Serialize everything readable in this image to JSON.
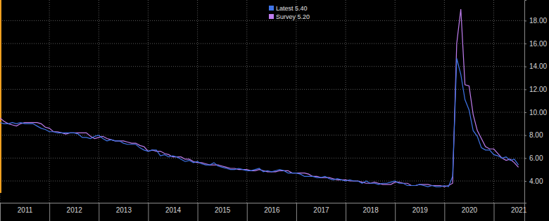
{
  "chart_data": {
    "type": "line",
    "x": [
      2011,
      2011.083,
      2011.167,
      2011.25,
      2011.333,
      2011.417,
      2011.5,
      2011.583,
      2011.667,
      2011.75,
      2011.833,
      2011.917,
      2012,
      2012.083,
      2012.167,
      2012.25,
      2012.333,
      2012.417,
      2012.5,
      2012.583,
      2012.667,
      2012.75,
      2012.833,
      2012.917,
      2013,
      2013.083,
      2013.167,
      2013.25,
      2013.333,
      2013.417,
      2013.5,
      2013.583,
      2013.667,
      2013.75,
      2013.833,
      2013.917,
      2014,
      2014.083,
      2014.167,
      2014.25,
      2014.333,
      2014.417,
      2014.5,
      2014.583,
      2014.667,
      2014.75,
      2014.833,
      2014.917,
      2015,
      2015.083,
      2015.167,
      2015.25,
      2015.333,
      2015.417,
      2015.5,
      2015.583,
      2015.667,
      2015.75,
      2015.833,
      2015.917,
      2016,
      2016.083,
      2016.167,
      2016.25,
      2016.333,
      2016.417,
      2016.5,
      2016.583,
      2016.667,
      2016.75,
      2016.833,
      2016.917,
      2017,
      2017.083,
      2017.167,
      2017.25,
      2017.333,
      2017.417,
      2017.5,
      2017.583,
      2017.667,
      2017.75,
      2017.833,
      2017.917,
      2018,
      2018.083,
      2018.167,
      2018.25,
      2018.333,
      2018.417,
      2018.5,
      2018.583,
      2018.667,
      2018.75,
      2018.833,
      2018.917,
      2019,
      2019.083,
      2019.167,
      2019.25,
      2019.333,
      2019.417,
      2019.5,
      2019.583,
      2019.667,
      2019.75,
      2019.833,
      2019.917,
      2020,
      2020.083,
      2020.167,
      2020.25,
      2020.333,
      2020.417,
      2020.5,
      2020.583,
      2020.667,
      2020.75,
      2020.833,
      2020.917,
      2021,
      2021.083,
      2021.167,
      2021.25,
      2021.333,
      2021.417,
      2021.5
    ],
    "series": [
      {
        "name": "Latest 5.40",
        "color": "#3f74e8",
        "values": [
          9.1,
          9.0,
          9.0,
          9.1,
          9.0,
          9.1,
          9.0,
          9.0,
          9.0,
          8.8,
          8.6,
          8.5,
          8.3,
          8.3,
          8.2,
          8.2,
          8.2,
          8.2,
          8.2,
          8.1,
          7.8,
          7.8,
          7.7,
          7.9,
          8.0,
          7.7,
          7.5,
          7.6,
          7.5,
          7.5,
          7.3,
          7.2,
          7.2,
          7.2,
          6.9,
          6.7,
          6.6,
          6.7,
          6.7,
          6.2,
          6.3,
          6.1,
          6.2,
          6.1,
          5.9,
          5.7,
          5.8,
          5.6,
          5.7,
          5.5,
          5.4,
          5.4,
          5.6,
          5.3,
          5.2,
          5.1,
          5.0,
          5.0,
          5.1,
          5.0,
          4.9,
          4.9,
          5.0,
          5.1,
          4.8,
          4.9,
          4.8,
          4.9,
          5.0,
          4.9,
          4.7,
          4.7,
          4.7,
          4.6,
          4.4,
          4.4,
          4.4,
          4.3,
          4.3,
          4.4,
          4.2,
          4.1,
          4.2,
          4.1,
          4.0,
          4.1,
          4.0,
          4.0,
          3.8,
          4.0,
          3.8,
          3.8,
          3.7,
          3.8,
          3.8,
          3.9,
          4.0,
          3.8,
          3.8,
          3.6,
          3.6,
          3.6,
          3.7,
          3.6,
          3.5,
          3.6,
          3.5,
          3.5,
          3.6,
          3.5,
          4.4,
          14.7,
          13.3,
          11.1,
          10.2,
          8.4,
          7.9,
          6.9,
          6.7,
          6.7,
          6.3,
          6.2,
          6.0,
          6.1,
          5.8,
          5.9,
          5.4
        ]
      },
      {
        "name": "Survey 5.20",
        "color": "#c07ef0",
        "values": [
          9.5,
          9.2,
          9.0,
          8.9,
          8.8,
          9.0,
          9.1,
          9.1,
          9.1,
          9.1,
          9.0,
          8.7,
          8.6,
          8.3,
          8.3,
          8.2,
          8.1,
          8.2,
          8.2,
          8.2,
          8.2,
          8.2,
          7.9,
          7.7,
          7.8,
          7.9,
          7.7,
          7.6,
          7.5,
          7.5,
          7.5,
          7.4,
          7.3,
          7.3,
          7.1,
          7.0,
          6.6,
          6.7,
          6.6,
          6.6,
          6.4,
          6.3,
          6.1,
          6.1,
          6.1,
          5.9,
          5.9,
          5.7,
          5.6,
          5.6,
          5.5,
          5.4,
          5.4,
          5.4,
          5.3,
          5.2,
          5.1,
          5.1,
          5.0,
          5.0,
          5.0,
          4.9,
          4.9,
          5.0,
          4.9,
          4.8,
          4.8,
          4.8,
          4.9,
          4.9,
          4.9,
          4.7,
          4.7,
          4.7,
          4.7,
          4.6,
          4.4,
          4.4,
          4.3,
          4.3,
          4.3,
          4.2,
          4.1,
          4.1,
          4.1,
          4.0,
          4.0,
          4.0,
          3.9,
          3.8,
          3.8,
          3.9,
          3.8,
          3.7,
          3.7,
          3.7,
          3.9,
          3.9,
          3.8,
          3.8,
          3.6,
          3.6,
          3.7,
          3.7,
          3.7,
          3.6,
          3.6,
          3.6,
          3.5,
          3.6,
          3.8,
          16.0,
          19.0,
          12.4,
          12.3,
          9.8,
          8.4,
          7.7,
          7.0,
          6.8,
          6.8,
          6.4,
          6.0,
          5.8,
          5.9,
          5.6,
          5.2
        ]
      }
    ],
    "xlim": [
      2011,
      2021.62
    ],
    "xticks": [
      2011,
      2012,
      2013,
      2014,
      2015,
      2016,
      2017,
      2018,
      2019,
      2020,
      2021
    ],
    "ylim": [
      2.1,
      19.8
    ],
    "yticks": [
      {
        "value": 4,
        "label": "4.00"
      },
      {
        "value": 6,
        "label": "6.00"
      },
      {
        "value": 8,
        "label": "8.00"
      },
      {
        "value": 10,
        "label": "10.00"
      },
      {
        "value": 12,
        "label": "12.00"
      },
      {
        "value": 14,
        "label": "14.00"
      },
      {
        "value": 16,
        "label": "16.00"
      },
      {
        "value": 18,
        "label": "18.00"
      }
    ],
    "grid": true,
    "legend": "top"
  }
}
